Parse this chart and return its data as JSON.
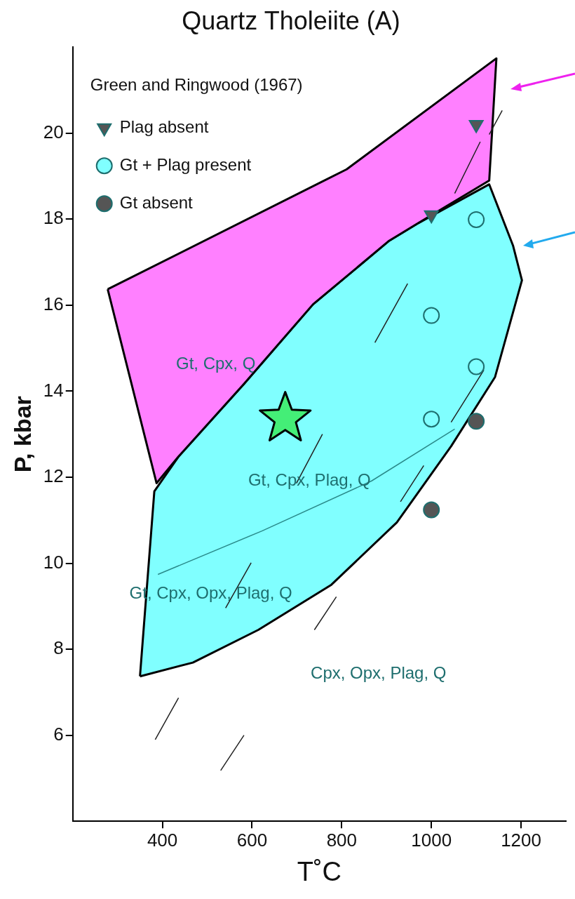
{
  "chart_data": {
    "type": "line",
    "title": "Quartz Tholeiite (A)",
    "xlabel": "T˚C",
    "ylabel": "P, kbar",
    "legend_title": "Green and Ringwood (1967)",
    "legend": "top left",
    "grid": false,
    "xlim": [
      200,
      1300
    ],
    "xticks": [
      400,
      600,
      800,
      1000,
      1200
    ],
    "ylim": [
      4,
      22
    ],
    "yticks": [
      6,
      8,
      10,
      12,
      14,
      16,
      18,
      20
    ],
    "series": [
      {
        "type": "area",
        "color": "#ff80ff",
        "x": [
          278,
          387,
          436,
          582,
          736,
          906,
          971,
          1129,
          1145,
          811,
          278
        ],
        "values": [
          16.37,
          11.86,
          12.48,
          14.17,
          16.02,
          17.5,
          17.91,
          18.9,
          21.74,
          19.16,
          16.37
        ]
      },
      {
        "type": "area",
        "color": "#80ffff",
        "x": [
          350,
          468,
          614,
          777,
          923,
          1044,
          1142,
          1202,
          1182,
          1129,
          971,
          906,
          736,
          582,
          436,
          382,
          350
        ],
        "values": [
          7.37,
          7.69,
          8.45,
          9.5,
          10.95,
          12.72,
          14.33,
          16.58,
          17.39,
          18.81,
          17.91,
          17.5,
          16.02,
          14.17,
          12.48,
          11.67,
          7.37
        ]
      },
      {
        "type": "line",
        "color": "#2a8a8a",
        "x": [
          390,
          622,
          866,
          1052
        ],
        "values": [
          9.74,
          10.75,
          11.91,
          13.12
        ]
      },
      {
        "type": "line",
        "color": "#222222",
        "x": [
          384,
          436,
          null,
          530,
          582,
          null,
          739,
          788,
          null,
          541,
          598,
          null,
          699,
          757,
          null,
          874,
          947,
          null,
          931,
          983,
          null,
          1044,
          1117,
          null,
          1052,
          1109,
          null,
          1129,
          1158
        ],
        "values": [
          5.9,
          6.87,
          null,
          5.18,
          6.0,
          null,
          8.45,
          9.22,
          null,
          8.96,
          10.01,
          null,
          11.86,
          13.0,
          null,
          15.13,
          16.5,
          null,
          11.43,
          12.27,
          null,
          13.28,
          14.49,
          null,
          18.6,
          19.8,
          null,
          19.97,
          20.53
        ]
      },
      {
        "type": "scatter",
        "name": "Plag absent",
        "marker": "triangle",
        "color": "#555555",
        "x": [
          1000,
          1100
        ],
        "values": [
          18.1,
          20.2
        ]
      },
      {
        "type": "scatter",
        "name": "Gt + Plag present",
        "marker": "circle",
        "color": "#80ffff",
        "x": [
          1000,
          1000,
          1100,
          1100
        ],
        "values": [
          13.35,
          15.76,
          14.57,
          17.99
        ]
      },
      {
        "type": "scatter",
        "name": "Gt absent",
        "marker": "circle",
        "color": "#555555",
        "x": [
          1000,
          1100
        ],
        "values": [
          11.24,
          13.3
        ]
      },
      {
        "type": "scatter",
        "marker": "star",
        "color": "#44ee77",
        "x": [
          674
        ],
        "values": [
          13.36
        ]
      }
    ],
    "annotations": [
      "Gt, Cpx, Q",
      "Gt, Cpx, Plag, Q",
      "Gt, Cpx, Opx, Plag, Q",
      "Cpx, Opx, Plag, Q"
    ]
  }
}
